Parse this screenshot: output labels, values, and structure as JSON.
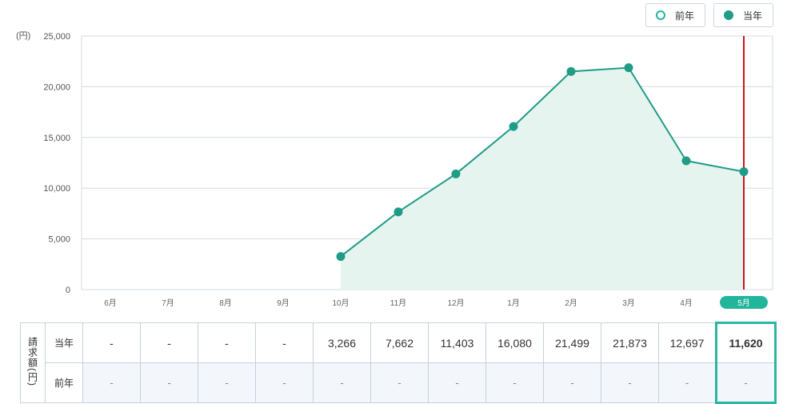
{
  "legend": {
    "previous_label": "前年",
    "current_label": "当年"
  },
  "colors": {
    "line": "#1f9c87",
    "area": "#e6f4f0",
    "current_marker": "#c8161d",
    "selected_tab": "#21b59b",
    "selected_border": "#2bb6a3"
  },
  "chart_data": {
    "type": "area",
    "unit_label": "(円)",
    "categories": [
      "6月",
      "7月",
      "8月",
      "9月",
      "10月",
      "11月",
      "12月",
      "1月",
      "2月",
      "3月",
      "4月",
      "5月"
    ],
    "series": [
      {
        "name": "当年",
        "values": [
          null,
          null,
          null,
          null,
          3266,
          7662,
          11403,
          16080,
          21499,
          21873,
          12697,
          11620
        ]
      },
      {
        "name": "前年",
        "values": [
          null,
          null,
          null,
          null,
          null,
          null,
          null,
          null,
          null,
          null,
          null,
          null
        ]
      }
    ],
    "yticks": [
      "25,000",
      "20,000",
      "15,000",
      "10,000",
      "5,000",
      "0"
    ],
    "ylim": [
      0,
      25000
    ],
    "grid": true,
    "selected_category": "5月",
    "legend_position": "top-right"
  },
  "table": {
    "side_label": "請求額(円)",
    "current_label": "当年",
    "previous_label": "前年",
    "current_row": [
      "-",
      "-",
      "-",
      "-",
      "3,266",
      "7,662",
      "11,403",
      "16,080",
      "21,499",
      "21,873",
      "12,697",
      "11,620"
    ],
    "previous_row": [
      "-",
      "-",
      "-",
      "-",
      "-",
      "-",
      "-",
      "-",
      "-",
      "-",
      "-",
      "-"
    ]
  }
}
